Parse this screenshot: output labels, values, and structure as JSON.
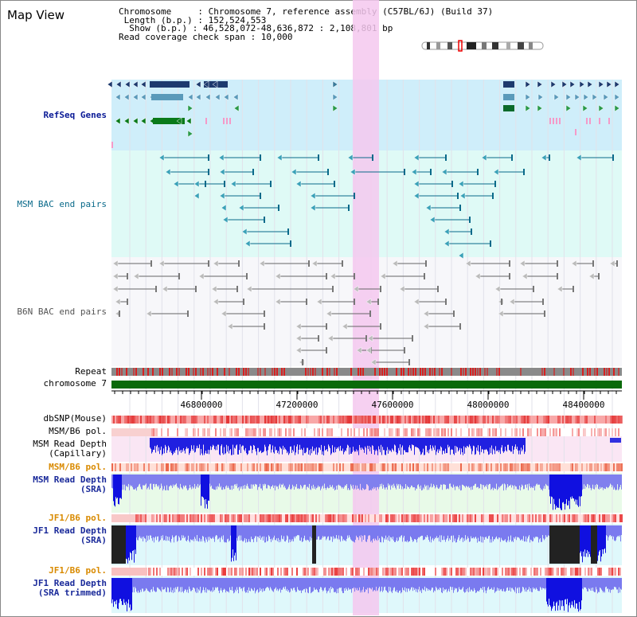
{
  "title": "Map View",
  "header": {
    "chromosome_line": "Chromosome     : Chromosome 7, reference assembly (C57BL/6J) (Build 37)",
    "length_line": " Length (b.p.) : 152,524,553",
    "show_line": "  Show (b.p.) : 46,528,072-48,636,872 : 2,108,801 bp",
    "coverage_line": "Read coverage check span : 10,000"
  },
  "tracks": {
    "refseq": "RefSeq Genes",
    "msm_bac": "MSM BAC end pairs",
    "b6n_bac": "B6N BAC end pairs",
    "repeat": "Repeat",
    "chromosome": "chromosome 7",
    "dbsnp": "dbSNP(Mouse)",
    "msm_b6_pol_1": "MSM/B6 pol.",
    "msm_read_depth_cap": "MSM Read Depth\n(Capillary)",
    "msm_b6_pol_2": "MSM/B6 pol.",
    "msm_read_depth_sra": "MSM Read Depth\n(SRA)",
    "jf1_b6_pol_1": "JF1/B6 pol.",
    "jf1_read_depth_sra": "JF1 Read Depth\n(SRA)",
    "jf1_b6_pol_2": "JF1/B6 pol.",
    "jf1_read_depth_trim": "JF1 Read Depth\n(SRA trimmed)"
  },
  "axis": {
    "ticks": [
      "46800000",
      "47200000",
      "47600000",
      "48000000",
      "48400000"
    ]
  },
  "colors": {
    "highlight": "#f5c8ee",
    "refseq_bg": "#cfeefa",
    "bac_bg": "#dffaf6",
    "depth_blue": "#2a2aee",
    "chromosome_green": "#0a6a0a"
  }
}
